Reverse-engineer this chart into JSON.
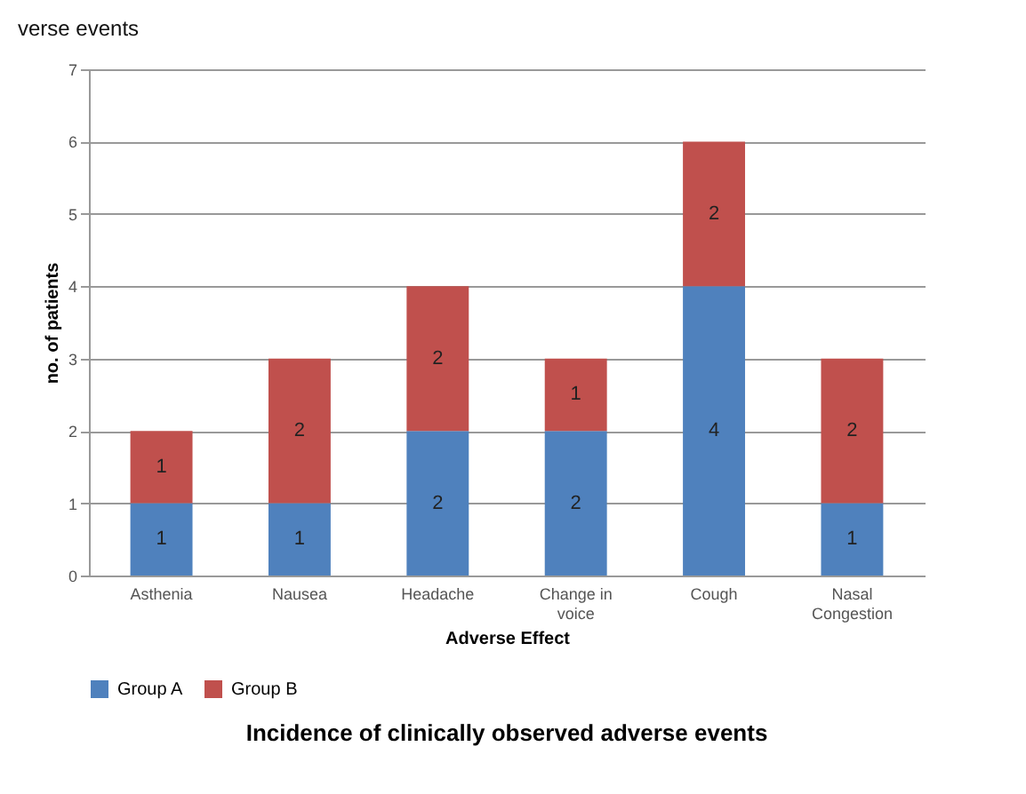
{
  "chart_data": {
    "type": "bar",
    "title": "Incidence  of clinically observed adverse events",
    "annotations": [
      "verse events"
    ],
    "categories": [
      "Asthenia",
      "Nausea",
      "Headache",
      "Change in voice",
      "Cough",
      "Nasal Congestion"
    ],
    "series": [
      {
        "name": "Group A",
        "color": "#4f81bd",
        "values": [
          1,
          1,
          2,
          2,
          4,
          1
        ]
      },
      {
        "name": "Group B",
        "color": "#c0504d",
        "values": [
          1,
          2,
          2,
          1,
          2,
          2
        ]
      }
    ],
    "stacked": true,
    "data_labels": true,
    "xlabel": "Adverse Effect",
    "ylabel": "no. of patients",
    "ylim": [
      0,
      7
    ],
    "yticks": [
      0,
      1,
      2,
      3,
      4,
      5,
      6,
      7
    ],
    "grid": "y",
    "legend": "bottom"
  }
}
